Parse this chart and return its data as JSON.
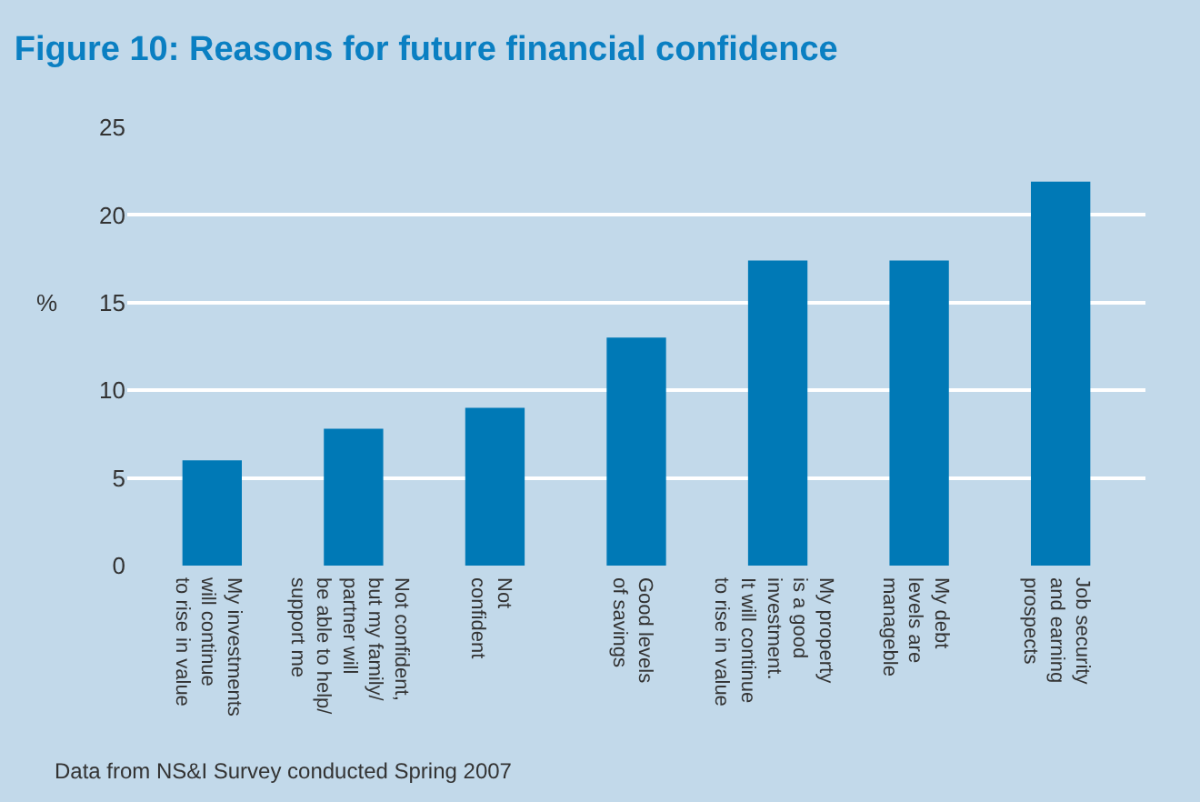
{
  "chart_data": {
    "type": "bar",
    "title": "Figure 10: Reasons for future financial confidence",
    "ylabel": "%",
    "categories": [
      "My investments\nwill continue\nto rise in value",
      "Not confident,\nbut my family/\npartner will\nbe able to help/\nsupport me",
      "Not\nconfident",
      "Good levels\nof savings",
      "My property\nis a good\ninvestment.\nIt will continue\nto rise in value",
      "My debt\nlevels are\nmanageble",
      "Job security\nand earning\nprospects"
    ],
    "values": [
      6,
      7.8,
      9,
      13,
      17.4,
      17.4,
      21.9
    ],
    "color": "#0079b6",
    "ylim": [
      0,
      25
    ],
    "yticks": [
      0,
      5,
      10,
      15,
      20,
      25
    ],
    "grid": "y",
    "annotations": [
      "Data from NS&I Survey conducted Spring 2007"
    ]
  }
}
